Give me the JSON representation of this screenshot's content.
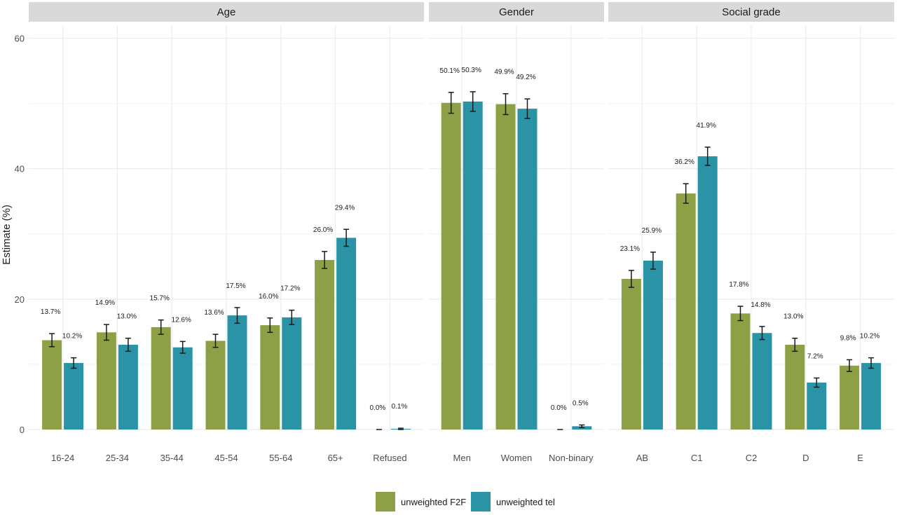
{
  "chart_data": {
    "type": "bar",
    "ylabel": "Estimate (%)",
    "ylim": [
      0,
      62
    ],
    "yticks": [
      0,
      20,
      40,
      60
    ],
    "grid": true,
    "legend_position": "bottom",
    "series": [
      {
        "name": "unweighted F2F",
        "color": "#8ea045"
      },
      {
        "name": "unweighted tel",
        "color": "#2a93a6"
      }
    ],
    "panels": [
      {
        "title": "Age",
        "categories": [
          "16-24",
          "25-34",
          "35-44",
          "45-54",
          "55-64",
          "65+",
          "Refused"
        ],
        "values": [
          [
            13.7,
            14.9,
            15.7,
            13.6,
            16.0,
            26.0,
            0.0
          ],
          [
            10.2,
            13.0,
            12.6,
            17.5,
            17.2,
            29.4,
            0.1
          ]
        ],
        "labels": [
          [
            "13.7%",
            "14.9%",
            "15.7%",
            "13.6%",
            "16.0%",
            "26.0%",
            "0.0%"
          ],
          [
            "10.2%",
            "13.0%",
            "12.6%",
            "17.5%",
            "17.2%",
            "29.4%",
            "0.1%"
          ]
        ],
        "err": [
          [
            1.0,
            1.2,
            1.1,
            1.0,
            1.1,
            1.3,
            0.0
          ],
          [
            0.8,
            1.0,
            0.9,
            1.2,
            1.1,
            1.3,
            0.1
          ]
        ]
      },
      {
        "title": "Gender",
        "categories": [
          "Men",
          "Women",
          "Non-binary"
        ],
        "values": [
          [
            50.1,
            49.9,
            0.0
          ],
          [
            50.3,
            49.2,
            0.5
          ]
        ],
        "labels": [
          [
            "50.1%",
            "49.9%",
            "0.0%"
          ],
          [
            "50.3%",
            "49.2%",
            "0.5%"
          ]
        ],
        "err": [
          [
            1.6,
            1.6,
            0.0
          ],
          [
            1.5,
            1.5,
            0.2
          ]
        ]
      },
      {
        "title": "Social grade",
        "categories": [
          "AB",
          "C1",
          "C2",
          "D",
          "E"
        ],
        "values": [
          [
            23.1,
            36.2,
            17.8,
            13.0,
            9.8
          ],
          [
            25.9,
            41.9,
            14.8,
            7.2,
            10.2
          ]
        ],
        "labels": [
          [
            "23.1%",
            "36.2%",
            "17.8%",
            "13.0%",
            "9.8%"
          ],
          [
            "25.9%",
            "41.9%",
            "14.8%",
            "7.2%",
            "10.2%"
          ]
        ],
        "err": [
          [
            1.3,
            1.5,
            1.1,
            1.0,
            0.9
          ],
          [
            1.3,
            1.4,
            1.0,
            0.7,
            0.8
          ]
        ]
      }
    ]
  }
}
